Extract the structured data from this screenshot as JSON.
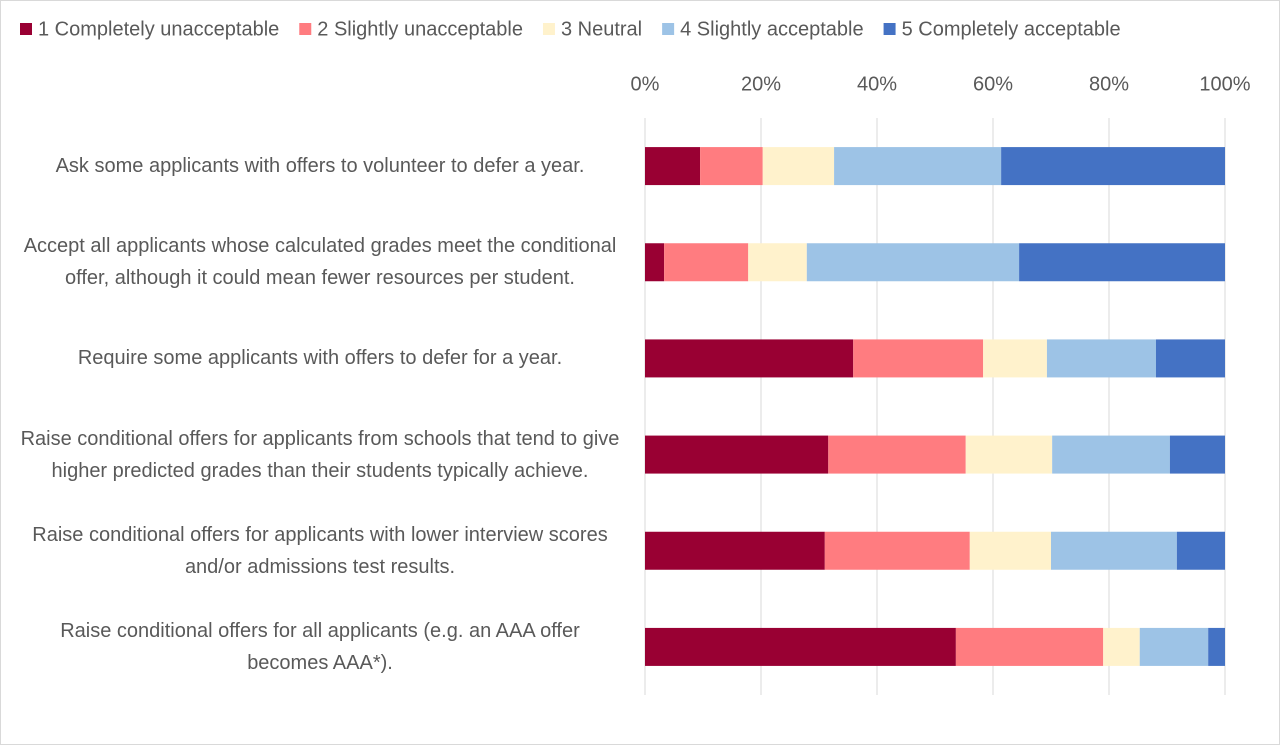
{
  "chart_data": {
    "type": "stacked_bar_horizontal",
    "categories": [
      "Ask some applicants with offers to volunteer to defer a year.",
      "Accept all applicants whose calculated grades meet the conditional offer, although it could mean fewer resources per student.",
      "Require some applicants with offers to defer for a year.",
      "Raise conditional offers for applicants from schools that tend to give higher predicted grades than their students typically achieve.",
      "Raise conditional offers for applicants with lower interview scores and/or admissions test results.",
      "Raise conditional offers for all applicants (e.g. an AAA offer becomes AAA*)."
    ],
    "series": [
      {
        "name": "1 Completely unacceptable",
        "color": "#990033",
        "values": [
          9.5,
          3.3,
          35.9,
          31.6,
          31.0,
          53.6
        ]
      },
      {
        "name": "2 Slightly unacceptable",
        "color": "#ff7c80",
        "values": [
          10.8,
          14.5,
          22.4,
          23.7,
          25.0,
          25.4
        ]
      },
      {
        "name": "3 Neutral",
        "color": "#fff2cc",
        "values": [
          12.3,
          10.1,
          11.0,
          14.9,
          14.0,
          6.3
        ]
      },
      {
        "name": "4 Slightly acceptable",
        "color": "#9dc3e6",
        "values": [
          28.8,
          36.6,
          18.8,
          20.3,
          21.7,
          11.8
        ]
      },
      {
        "name": "5 Completely acceptable",
        "color": "#4472c4",
        "values": [
          38.6,
          35.5,
          11.9,
          9.5,
          8.3,
          2.9
        ]
      }
    ],
    "xlim": [
      0,
      100
    ],
    "xticks": [
      {
        "value": 0,
        "label": "0%"
      },
      {
        "value": 20,
        "label": "20%"
      },
      {
        "value": 40,
        "label": "40%"
      },
      {
        "value": 60,
        "label": "60%"
      },
      {
        "value": 80,
        "label": "80%"
      },
      {
        "value": 100,
        "label": "100%"
      }
    ],
    "grid": true,
    "legend": "top"
  }
}
